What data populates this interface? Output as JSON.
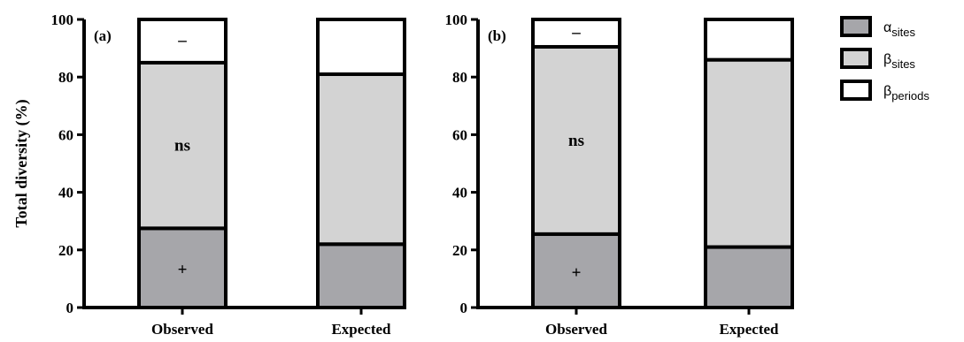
{
  "chart_data": {
    "type": "bar",
    "stacked": true,
    "ylabel": "Total diversity (%)",
    "ylim": [
      0,
      100
    ],
    "yticks": [
      0,
      20,
      40,
      60,
      80,
      100
    ],
    "categories": [
      "Observed",
      "Expected"
    ],
    "legend": {
      "placement": "top-right",
      "entries": [
        {
          "symbol": "α",
          "subscript": "sites",
          "color": "#a6a6aa"
        },
        {
          "symbol": "β",
          "subscript": "sites",
          "color": "#d3d3d3"
        },
        {
          "symbol": "β",
          "subscript": "periods",
          "color": "#ffffff"
        }
      ]
    },
    "panels": [
      {
        "label": "(a)",
        "series": [
          {
            "values": [
              27.5,
              22
            ]
          },
          {
            "values": [
              57.5,
              59
            ]
          },
          {
            "values": [
              15,
              19
            ]
          }
        ],
        "annotations": [
          {
            "category": "Observed",
            "segment": 0,
            "text": "+"
          },
          {
            "category": "Observed",
            "segment": 1,
            "text": "ns"
          },
          {
            "category": "Observed",
            "segment": 2,
            "text": "–"
          }
        ]
      },
      {
        "label": "(b)",
        "series": [
          {
            "values": [
              25.5,
              21
            ]
          },
          {
            "values": [
              65,
              65
            ]
          },
          {
            "values": [
              9.5,
              14
            ]
          }
        ],
        "annotations": [
          {
            "category": "Observed",
            "segment": 0,
            "text": "+"
          },
          {
            "category": "Observed",
            "segment": 1,
            "text": "ns"
          },
          {
            "category": "Observed",
            "segment": 2,
            "text": "–"
          }
        ]
      }
    ]
  }
}
